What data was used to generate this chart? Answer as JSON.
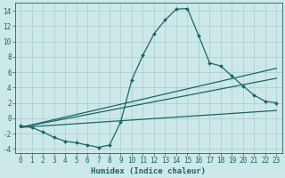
{
  "title": "",
  "xlabel": "Humidex (Indice chaleur)",
  "background_color": "#cce8e8",
  "grid_color": "#b0d0d0",
  "line_color": "#1a6666",
  "xlim": [
    -0.5,
    23.5
  ],
  "ylim": [
    -4.5,
    15.0
  ],
  "yticks": [
    -4,
    -2,
    0,
    2,
    4,
    6,
    8,
    10,
    12,
    14
  ],
  "xticks": [
    0,
    1,
    2,
    3,
    4,
    5,
    6,
    7,
    8,
    9,
    10,
    11,
    12,
    13,
    14,
    15,
    16,
    17,
    18,
    19,
    20,
    21,
    22,
    23
  ],
  "curve1_x": [
    0,
    1,
    2,
    3,
    4,
    5,
    6,
    7,
    8,
    9,
    10,
    11,
    12,
    13,
    14,
    15,
    16,
    17,
    18,
    19,
    20,
    21,
    22,
    23
  ],
  "curve1_y": [
    -1.0,
    -1.2,
    -1.8,
    -2.5,
    -3.0,
    -3.2,
    -3.5,
    -3.8,
    -3.5,
    -0.5,
    5.0,
    8.2,
    11.0,
    12.8,
    14.2,
    14.3,
    10.8,
    7.2,
    6.8,
    5.5,
    4.2,
    3.0,
    2.2,
    2.0
  ],
  "line1_x": [
    0,
    23
  ],
  "line1_y": [
    -1.2,
    6.5
  ],
  "line2_x": [
    0,
    23
  ],
  "line2_y": [
    -1.2,
    5.2
  ],
  "line3_x": [
    0,
    23
  ],
  "line3_y": [
    -1.2,
    1.0
  ],
  "marker_style": "D",
  "marker_size": 2.0,
  "line_width": 0.9,
  "xlabel_fontsize": 6.5,
  "tick_fontsize": 5.5
}
